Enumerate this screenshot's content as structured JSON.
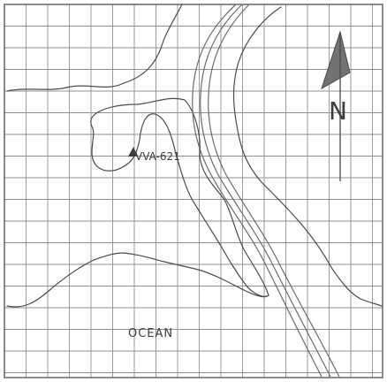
{
  "map": {
    "station_label": "VVA-621",
    "ocean_label": "OCEAN",
    "north_label": "N",
    "station_marker_icon": "triangle-marker-icon",
    "north_arrow_icon": "north-arrow-icon",
    "colors": {
      "ink": "#4a4a4a",
      "grid": "#8f8f8f",
      "paper": "#ffffff"
    }
  }
}
